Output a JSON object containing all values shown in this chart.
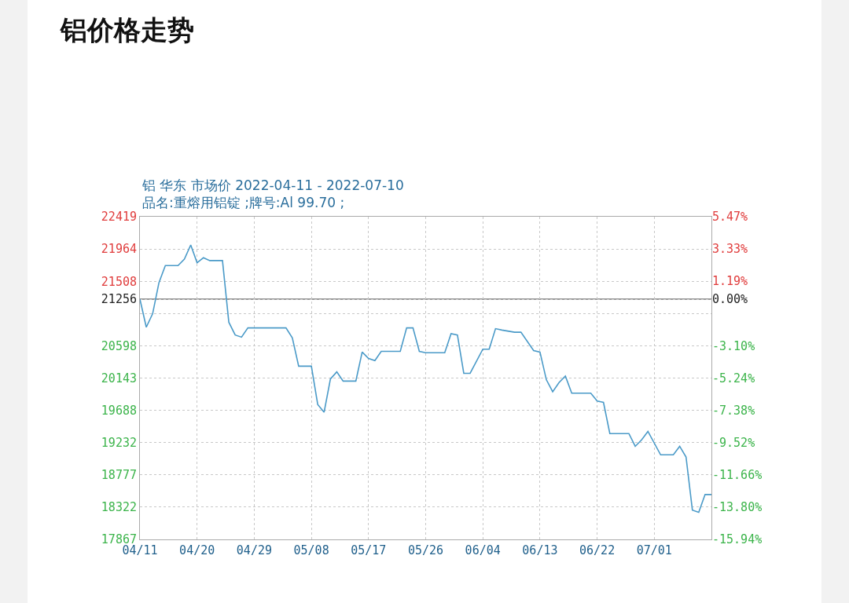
{
  "chart_data": {
    "type": "line",
    "title": "铝价格走势",
    "subtitle": "铝 华东 市场价 2022-04-11 - 2022-07-10\n品名:重熔用铝锭 ;牌号:Al 99.70 ;",
    "x": [
      "2022-04-11",
      "2022-04-12",
      "2022-04-13",
      "2022-04-14",
      "2022-04-15",
      "2022-04-17",
      "2022-04-18",
      "2022-04-19",
      "2022-04-20",
      "2022-04-21",
      "2022-04-22",
      "2022-04-24",
      "2022-04-25",
      "2022-04-26",
      "2022-04-27",
      "2022-04-28",
      "2022-05-04",
      "2022-05-05",
      "2022-05-06",
      "2022-05-08",
      "2022-05-09",
      "2022-05-10",
      "2022-05-11",
      "2022-05-12",
      "2022-05-13",
      "2022-05-15",
      "2022-05-16",
      "2022-05-17",
      "2022-05-18",
      "2022-05-19",
      "2022-05-22",
      "2022-05-23",
      "2022-05-24",
      "2022-05-25",
      "2022-05-26",
      "2022-05-29",
      "2022-05-30",
      "2022-05-31",
      "2022-06-01",
      "2022-06-02",
      "2022-06-04",
      "2022-06-05",
      "2022-06-06",
      "2022-06-07",
      "2022-06-09",
      "2022-06-10",
      "2022-06-12",
      "2022-06-13",
      "2022-06-14",
      "2022-06-15",
      "2022-06-16",
      "2022-06-17",
      "2022-06-18",
      "2022-06-21",
      "2022-06-22",
      "2022-06-23",
      "2022-06-24",
      "2022-06-27",
      "2022-06-28",
      "2022-06-29",
      "2022-06-30",
      "2022-07-02",
      "2022-07-04",
      "2022-07-05",
      "2022-07-06",
      "2022-07-07",
      "2022-07-08",
      "2022-07-09",
      "2022-07-10"
    ],
    "series": [
      {
        "color": "#4a9ac8",
        "values": [
          21256,
          20860,
          21050,
          21490,
          21730,
          21730,
          21820,
          22020,
          21770,
          21840,
          21800,
          21800,
          20930,
          20750,
          20720,
          20850,
          20850,
          20710,
          20310,
          20310,
          19770,
          19660,
          20130,
          20230,
          20100,
          20100,
          20510,
          20420,
          20390,
          20520,
          20520,
          20850,
          20850,
          20520,
          20500,
          20500,
          20770,
          20750,
          20210,
          20210,
          20550,
          20550,
          20840,
          20820,
          20790,
          20790,
          20530,
          20510,
          20120,
          19950,
          20080,
          20170,
          19930,
          19930,
          19820,
          19800,
          19360,
          19360,
          19180,
          19270,
          19390,
          19060,
          19060,
          19180,
          19030,
          18280,
          18250,
          18500,
          18500
        ]
      }
    ],
    "xlim": [
      "2022-04-11",
      "2022-07-10"
    ],
    "xticks": [
      {
        "value": "2022-04-11",
        "label": "04/11"
      },
      {
        "value": "2022-04-20",
        "label": "04/20"
      },
      {
        "value": "2022-04-29",
        "label": "04/29"
      },
      {
        "value": "2022-05-08",
        "label": "05/08"
      },
      {
        "value": "2022-05-17",
        "label": "05/17"
      },
      {
        "value": "2022-05-26",
        "label": "05/26"
      },
      {
        "value": "2022-06-04",
        "label": "06/04"
      },
      {
        "value": "2022-06-13",
        "label": "06/13"
      },
      {
        "value": "2022-06-22",
        "label": "06/22"
      },
      {
        "value": "2022-07-01",
        "label": "07/01"
      }
    ],
    "ylim": [
      17867,
      22419
    ],
    "yticks": [
      22419,
      21964,
      21508,
      21256,
      {
        "value": 21053,
        "label": null
      },
      20598,
      20143,
      19688,
      19232,
      18777,
      18322,
      17867
    ],
    "y2lim": [
      -15.94,
      5.47
    ],
    "y2ticks": [
      {
        "value": 5.47,
        "label": "5.47%"
      },
      {
        "value": 3.33,
        "label": "3.33%"
      },
      {
        "value": 1.19,
        "label": "1.19%"
      },
      {
        "value": 0,
        "label": "0.00%"
      },
      {
        "value": -3.1,
        "label": "-3.10%"
      },
      {
        "value": -5.24,
        "label": "-5.24%"
      },
      {
        "value": -7.38,
        "label": "-7.38%"
      },
      {
        "value": -9.52,
        "label": "-9.52%"
      },
      {
        "value": -11.66,
        "label": "-11.66%"
      },
      {
        "value": -13.8,
        "label": "-13.80%"
      },
      {
        "value": -15.94,
        "label": "-15.94%"
      }
    ],
    "ref_lines": [
      {
        "axis": "y",
        "value": 21256,
        "color": "#999999",
        "line_style": "solid"
      }
    ],
    "grid": true,
    "marker": "none",
    "line_style": "solid"
  }
}
